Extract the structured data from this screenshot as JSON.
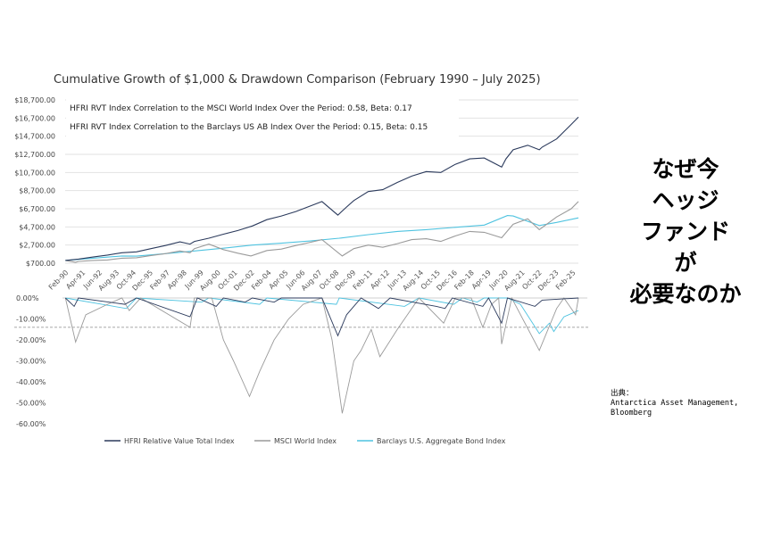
{
  "chart_data": {
    "type": "line",
    "title": "Cumulative Growth of $1,000 & Drawdown Comparison (February 1990 – July 2025)",
    "annotations": [
      "HFRI RVT Index Correlation to the MSCI World Index Over the Period: 0.58, Beta: 0.17",
      "HFRI RVT Index Correlation to the Barclays US AB Index Over the Period: 0.15, Beta: 0.15"
    ],
    "x_ticks": [
      "Feb-90",
      "Apr-91",
      "Jun-92",
      "Aug-93",
      "Oct-94",
      "Dec-95",
      "Feb-97",
      "Apr-98",
      "Jun-99",
      "Aug-00",
      "Oct-01",
      "Dec-02",
      "Feb-04",
      "Apr-05",
      "Jun-06",
      "Aug-07",
      "Oct-08",
      "Dec-09",
      "Feb-11",
      "Apr-12",
      "Jun-13",
      "Aug-14",
      "Oct-15",
      "Dec-16",
      "Feb-18",
      "Apr-19",
      "Jun-20",
      "Aug-21",
      "Oct-22",
      "Dec-23",
      "Feb-25"
    ],
    "xlim": [
      1990.08,
      2025.5
    ],
    "growth": {
      "ylim": [
        700,
        18700
      ],
      "y_ticks": [
        "$700.00",
        "$2,700.00",
        "$4,700.00",
        "$6,700.00",
        "$8,700.00",
        "$10,700.00",
        "$12,700.00",
        "$14,700.00",
        "$16,700.00",
        "$18,700.00"
      ],
      "grid": true,
      "series": [
        {
          "name": "HFRI Relative Value Total Index",
          "color": "#2b3a5c",
          "points": [
            [
              1990.1,
              1000
            ],
            [
              1991,
              1150
            ],
            [
              1992,
              1380
            ],
            [
              1993,
              1600
            ],
            [
              1994,
              1850
            ],
            [
              1995,
              1950
            ],
            [
              1996,
              2300
            ],
            [
              1997,
              2650
            ],
            [
              1998,
              3050
            ],
            [
              1998.7,
              2800
            ],
            [
              1999,
              3100
            ],
            [
              2000,
              3450
            ],
            [
              2001,
              3900
            ],
            [
              2002,
              4300
            ],
            [
              2003,
              4800
            ],
            [
              2004,
              5500
            ],
            [
              2005,
              5900
            ],
            [
              2006,
              6400
            ],
            [
              2007,
              7000
            ],
            [
              2007.8,
              7500
            ],
            [
              2008.9,
              6000
            ],
            [
              2009.5,
              6900
            ],
            [
              2010,
              7600
            ],
            [
              2011,
              8600
            ],
            [
              2012,
              8800
            ],
            [
              2013,
              9600
            ],
            [
              2014,
              10300
            ],
            [
              2015,
              10800
            ],
            [
              2016,
              10700
            ],
            [
              2017,
              11600
            ],
            [
              2018,
              12200
            ],
            [
              2019,
              12300
            ],
            [
              2020.2,
              11300
            ],
            [
              2020.5,
              12200
            ],
            [
              2021,
              13200
            ],
            [
              2022,
              13700
            ],
            [
              2022.8,
              13200
            ],
            [
              2023,
              13500
            ],
            [
              2024,
              14400
            ],
            [
              2025,
              16000
            ],
            [
              2025.5,
              16800
            ]
          ]
        },
        {
          "name": "MSCI World Index",
          "color": "#9a9a9a",
          "points": [
            [
              1990.1,
              1000
            ],
            [
              1990.8,
              800
            ],
            [
              1991,
              900
            ],
            [
              1992,
              1000
            ],
            [
              1993,
              1050
            ],
            [
              1994,
              1250
            ],
            [
              1995,
              1300
            ],
            [
              1996,
              1550
            ],
            [
              1997,
              1750
            ],
            [
              1998,
              2050
            ],
            [
              1998.7,
              1850
            ],
            [
              1999,
              2300
            ],
            [
              2000,
              2800
            ],
            [
              2001,
              2200
            ],
            [
              2002,
              1800
            ],
            [
              2002.9,
              1500
            ],
            [
              2004,
              2100
            ],
            [
              2005,
              2250
            ],
            [
              2006,
              2650
            ],
            [
              2007,
              3000
            ],
            [
              2007.8,
              3300
            ],
            [
              2009.2,
              1500
            ],
            [
              2010,
              2300
            ],
            [
              2011,
              2700
            ],
            [
              2012,
              2450
            ],
            [
              2013,
              2850
            ],
            [
              2014,
              3300
            ],
            [
              2015,
              3400
            ],
            [
              2016,
              3100
            ],
            [
              2017,
              3700
            ],
            [
              2018,
              4200
            ],
            [
              2019,
              4100
            ],
            [
              2020.2,
              3500
            ],
            [
              2021,
              5000
            ],
            [
              2022,
              5600
            ],
            [
              2022.8,
              4400
            ],
            [
              2024,
              5800
            ],
            [
              2025,
              6700
            ],
            [
              2025.5,
              7500
            ]
          ]
        },
        {
          "name": "Barclays U.S. Aggregate Bond Index",
          "color": "#4fc3e0",
          "points": [
            [
              1990.1,
              1000
            ],
            [
              1992,
              1250
            ],
            [
              1994,
              1500
            ],
            [
              1995,
              1480
            ],
            [
              1997,
              1750
            ],
            [
              1999,
              2050
            ],
            [
              2001,
              2350
            ],
            [
              2003,
              2700
            ],
            [
              2005,
              2900
            ],
            [
              2007,
              3150
            ],
            [
              2009,
              3450
            ],
            [
              2011,
              3850
            ],
            [
              2013,
              4200
            ],
            [
              2015,
              4400
            ],
            [
              2017,
              4650
            ],
            [
              2019,
              4900
            ],
            [
              2020.6,
              5950
            ],
            [
              2021,
              5900
            ],
            [
              2022.8,
              4850
            ],
            [
              2024,
              5200
            ],
            [
              2025.5,
              5700
            ]
          ]
        }
      ]
    },
    "drawdown": {
      "ylim": [
        -60,
        0
      ],
      "y_ticks": [
        "0.00%",
        "-10.00%",
        "-20.00%",
        "-30.00%",
        "-40.00%",
        "-50.00%",
        "-60.00%"
      ],
      "reference_line": -14,
      "series": [
        {
          "name": "HFRI Relative Value Total Index",
          "color": "#2b3a5c",
          "points": [
            [
              1990.1,
              0
            ],
            [
              1990.7,
              -4
            ],
            [
              1991,
              0
            ],
            [
              1994.2,
              -3
            ],
            [
              1995,
              0
            ],
            [
              1998.7,
              -9
            ],
            [
              1999.2,
              0
            ],
            [
              2000.5,
              -4
            ],
            [
              2001,
              0
            ],
            [
              2002.5,
              -2
            ],
            [
              2003,
              0
            ],
            [
              2004.5,
              -2
            ],
            [
              2005,
              0
            ],
            [
              2007.8,
              0
            ],
            [
              2008.9,
              -18
            ],
            [
              2009.5,
              -8
            ],
            [
              2010.5,
              0
            ],
            [
              2011.7,
              -5
            ],
            [
              2012.5,
              0
            ],
            [
              2015.7,
              -4
            ],
            [
              2016.3,
              -5
            ],
            [
              2016.8,
              0
            ],
            [
              2018.9,
              -4
            ],
            [
              2019.3,
              0
            ],
            [
              2020.2,
              -12
            ],
            [
              2020.6,
              0
            ],
            [
              2022.5,
              -4
            ],
            [
              2023,
              -1
            ],
            [
              2025.5,
              0
            ]
          ]
        },
        {
          "name": "MSCI World Index",
          "color": "#9a9a9a",
          "points": [
            [
              1990.1,
              0
            ],
            [
              1990.8,
              -21
            ],
            [
              1991.5,
              -8
            ],
            [
              1993,
              -3
            ],
            [
              1994,
              0
            ],
            [
              1994.5,
              -6
            ],
            [
              1995.3,
              0
            ],
            [
              1998.7,
              -14
            ],
            [
              1999,
              0
            ],
            [
              2000.2,
              0
            ],
            [
              2001,
              -20
            ],
            [
              2001.7,
              -30
            ],
            [
              2002.8,
              -47
            ],
            [
              2003.5,
              -35
            ],
            [
              2004.5,
              -20
            ],
            [
              2005.5,
              -10
            ],
            [
              2006.5,
              -3
            ],
            [
              2007.8,
              0
            ],
            [
              2008.5,
              -20
            ],
            [
              2009.2,
              -55
            ],
            [
              2010,
              -30
            ],
            [
              2010.5,
              -25
            ],
            [
              2011.2,
              -15
            ],
            [
              2011.8,
              -28
            ],
            [
              2013,
              -15
            ],
            [
              2014,
              -5
            ],
            [
              2014.5,
              0
            ],
            [
              2016.2,
              -12
            ],
            [
              2017,
              0
            ],
            [
              2018.1,
              0
            ],
            [
              2018.9,
              -14
            ],
            [
              2019.5,
              -3
            ],
            [
              2020,
              0
            ],
            [
              2020.2,
              -22
            ],
            [
              2020.9,
              0
            ],
            [
              2022.8,
              -25
            ],
            [
              2024,
              -5
            ],
            [
              2024.5,
              0
            ],
            [
              2025.3,
              -8
            ],
            [
              2025.5,
              0
            ]
          ]
        },
        {
          "name": "Barclays U.S. Aggregate Bond Index",
          "color": "#4fc3e0",
          "points": [
            [
              1990.1,
              0
            ],
            [
              1994.3,
              -5
            ],
            [
              1995,
              0
            ],
            [
              1999.5,
              -2
            ],
            [
              2000,
              0
            ],
            [
              2003.5,
              -3
            ],
            [
              2004,
              0
            ],
            [
              2008.8,
              -3
            ],
            [
              2009,
              0
            ],
            [
              2013.5,
              -4
            ],
            [
              2014.5,
              0
            ],
            [
              2016.9,
              -3
            ],
            [
              2017.5,
              0
            ],
            [
              2018.5,
              -2
            ],
            [
              2019,
              0
            ],
            [
              2020.6,
              0
            ],
            [
              2021.5,
              -3
            ],
            [
              2022.8,
              -17
            ],
            [
              2023.5,
              -12
            ],
            [
              2023.8,
              -16
            ],
            [
              2024.5,
              -9
            ],
            [
              2025.5,
              -6
            ]
          ]
        }
      ]
    },
    "legend": [
      "HFRI Relative Value Total Index",
      "MSCI World Index",
      "Barclays U.S. Aggregate Bond Index"
    ],
    "legend_position": "bottom"
  },
  "headline": [
    "なぜ今",
    "ヘッジ",
    "ファンド",
    "が",
    "必要なのか"
  ],
  "source": {
    "label": "出典：",
    "lines": [
      "Antarctica Asset Management,",
      "Bloomberg"
    ]
  }
}
